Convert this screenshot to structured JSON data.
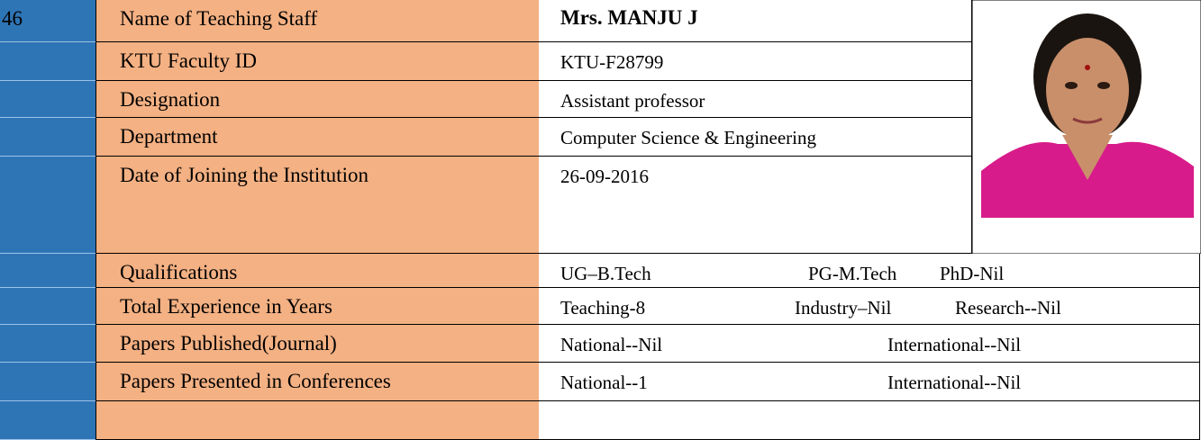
{
  "serial": "46",
  "rows": [
    {
      "label": "Name of Teaching Staff",
      "value": "Mrs. MANJU J"
    },
    {
      "label": "KTU Faculty ID",
      "value": "KTU-F28799"
    },
    {
      "label": "Designation",
      "value": "Assistant professor"
    },
    {
      "label": "Department",
      "value": "Computer Science & Engineering"
    },
    {
      "label": "Date of Joining the Institution",
      "value": "26-09-2016"
    },
    {
      "label": "Qualifications",
      "parts": [
        "UG–B.Tech",
        "PG-M.Tech",
        "PhD-Nil"
      ]
    },
    {
      "label": "Total Experience in Years",
      "parts": [
        "Teaching-8",
        "Industry–Nil",
        "Research--Nil"
      ]
    },
    {
      "label": "Papers Published(Journal)",
      "parts": [
        "National--Nil",
        "International--Nil"
      ]
    },
    {
      "label": "Papers Presented in Conferences",
      "parts": [
        "National--1",
        "International--Nil"
      ]
    }
  ]
}
